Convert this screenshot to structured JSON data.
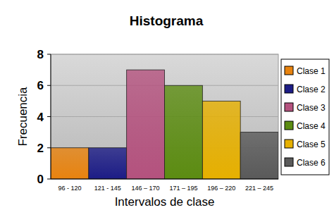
{
  "chart_data": {
    "type": "bar",
    "title": "Histograma",
    "x_label": "Intervalos de clase",
    "y_label": "Frecuencia",
    "categories": [
      "96 - 120",
      "121 - 145",
      "146 – 170",
      "171 – 195",
      "196 – 220",
      "221 – 245"
    ],
    "series": [
      {
        "name": "Clase 1",
        "color": "#e8830f",
        "values": [
          2,
          null,
          null,
          null,
          null,
          null
        ]
      },
      {
        "name": "Clase 2",
        "color": "#1c1c86",
        "values": [
          null,
          2,
          null,
          null,
          null,
          null
        ]
      },
      {
        "name": "Clase 3",
        "color": "#b4527e",
        "values": [
          null,
          null,
          7,
          null,
          null,
          null
        ]
      },
      {
        "name": "Clase 4",
        "color": "#5c8c12",
        "values": [
          null,
          null,
          null,
          6,
          null,
          null
        ]
      },
      {
        "name": "Clase 5",
        "color": "#e6b000",
        "values": [
          null,
          null,
          null,
          null,
          5,
          null
        ]
      },
      {
        "name": "Clase 6",
        "color": "#5a5a5a",
        "values": [
          null,
          null,
          null,
          null,
          null,
          3
        ]
      }
    ],
    "ylim": [
      0,
      8
    ],
    "yticks": [
      0,
      2,
      4,
      6,
      8
    ],
    "grid": true,
    "legend": "right"
  }
}
